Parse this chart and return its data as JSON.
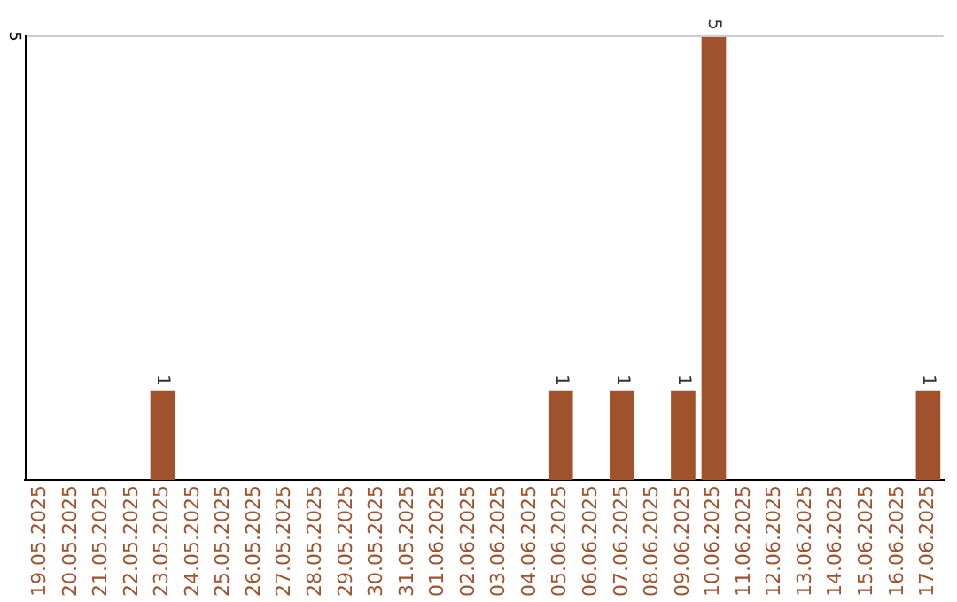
{
  "chart_data": {
    "type": "bar",
    "categories": [
      "19.05.2025",
      "20.05.2025",
      "21.05.2025",
      "22.05.2025",
      "23.05.2025",
      "24.05.2025",
      "25.05.2025",
      "26.05.2025",
      "27.05.2025",
      "28.05.2025",
      "29.05.2025",
      "30.05.2025",
      "31.05.2025",
      "01.06.2025",
      "02.06.2025",
      "03.06.2025",
      "04.06.2025",
      "05.06.2025",
      "06.06.2025",
      "07.06.2025",
      "08.06.2025",
      "09.06.2025",
      "10.06.2025",
      "11.06.2025",
      "12.06.2025",
      "13.06.2025",
      "14.06.2025",
      "15.06.2025",
      "16.06.2025",
      "17.06.2025"
    ],
    "values": [
      0,
      0,
      0,
      0,
      1,
      0,
      0,
      0,
      0,
      0,
      0,
      0,
      0,
      0,
      0,
      0,
      0,
      1,
      0,
      1,
      0,
      1,
      5,
      0,
      0,
      0,
      0,
      0,
      0,
      1
    ],
    "value_labels": [
      null,
      null,
      null,
      null,
      "1",
      null,
      null,
      null,
      null,
      null,
      null,
      null,
      null,
      null,
      null,
      null,
      null,
      "1",
      null,
      "1",
      null,
      "1",
      "5",
      null,
      null,
      null,
      null,
      null,
      null,
      "1"
    ],
    "color": "#a0522d",
    "ylim": [
      0,
      5
    ],
    "ref_lines": [
      {
        "axis": "y",
        "value": 5,
        "label": "5",
        "color": "#cccccc"
      }
    ]
  }
}
